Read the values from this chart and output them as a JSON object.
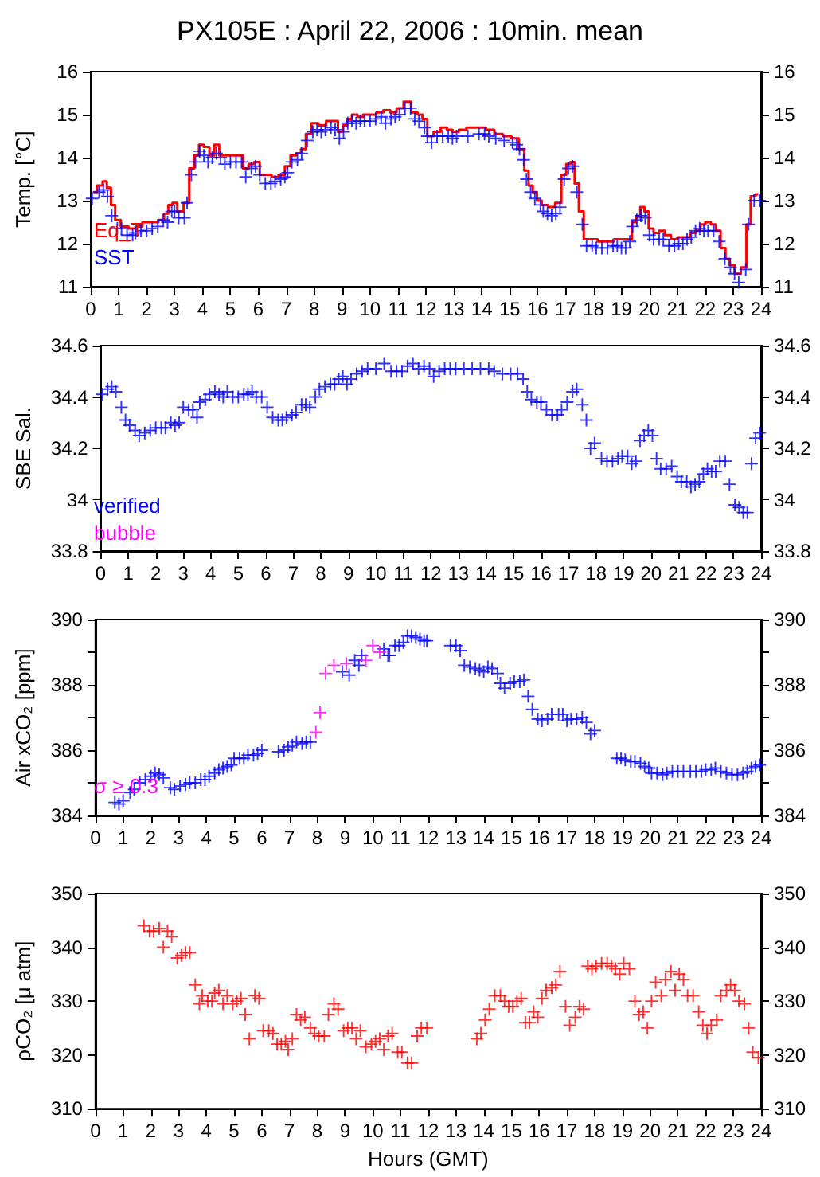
{
  "chart_data": [
    {
      "type": "scatter",
      "title": "PX105E : April 22, 2006 : 10min. mean",
      "ylabel": "Temp. [°C]",
      "xlim": [
        0,
        24
      ],
      "xticks": [
        0,
        1,
        2,
        3,
        4,
        5,
        6,
        7,
        8,
        9,
        10,
        11,
        12,
        13,
        14,
        15,
        16,
        17,
        18,
        19,
        20,
        21,
        22,
        23,
        24
      ],
      "ylim": [
        11,
        16
      ],
      "yticks": [
        11,
        12,
        13,
        14,
        15,
        16
      ],
      "y2lim": [
        11,
        16
      ],
      "y2ticks": [
        11,
        12,
        13,
        14,
        15,
        16
      ],
      "grid": false,
      "legend": "bottom left",
      "marker": "cross",
      "series": [
        {
          "name": "Eq_T",
          "type": "step",
          "marker": "none",
          "color": "#ff0000",
          "x": [
            0.1,
            0.35,
            0.5,
            0.65,
            0.8,
            0.95,
            1.2,
            1.5,
            1.7,
            2.0,
            2.3,
            2.55,
            2.7,
            2.85,
            3.0,
            3.2,
            3.45,
            3.6,
            3.8,
            3.95,
            4.15,
            4.35,
            4.5,
            4.7,
            4.9,
            5.1,
            5.35,
            5.55,
            5.75,
            5.95,
            6.15,
            6.35,
            6.6,
            6.85,
            7.05,
            7.25,
            7.45,
            7.6,
            7.8,
            8.0,
            8.3,
            8.55,
            8.75,
            8.95,
            9.1,
            9.25,
            9.45,
            9.65,
            9.85,
            10.1,
            10.35,
            10.6,
            10.85,
            11.05,
            11.35,
            11.6,
            11.8,
            11.95,
            12.15,
            12.4,
            12.65,
            12.85,
            13.05,
            13.3,
            13.6,
            14.0,
            14.3,
            14.6,
            14.9,
            15.2,
            15.45,
            15.6,
            15.75,
            15.9,
            16.05,
            16.25,
            16.5,
            16.75,
            16.95,
            17.1,
            17.25,
            17.4,
            17.55,
            17.75,
            18.0,
            18.3,
            18.6,
            18.85,
            19.1,
            19.3,
            19.45,
            19.6,
            19.75,
            19.9,
            20.05,
            20.25,
            20.45,
            20.65,
            20.9,
            21.1,
            21.35,
            21.55,
            21.75,
            21.9,
            22.1,
            22.3,
            22.45,
            22.65,
            22.8,
            22.95,
            23.15,
            23.4,
            23.55,
            23.7,
            23.9
          ],
          "values": [
            13.2,
            13.35,
            13.45,
            13.3,
            12.9,
            12.55,
            12.4,
            12.35,
            12.4,
            12.5,
            12.5,
            12.55,
            12.7,
            12.9,
            12.95,
            12.75,
            12.95,
            13.75,
            14.05,
            14.3,
            14.25,
            14.05,
            14.3,
            14.05,
            14.05,
            14.05,
            14.05,
            13.75,
            13.85,
            13.9,
            13.6,
            13.6,
            13.55,
            13.6,
            13.8,
            14.05,
            14.1,
            14.2,
            14.55,
            14.8,
            14.75,
            14.85,
            14.85,
            14.6,
            14.75,
            14.9,
            15.0,
            14.95,
            15.0,
            15.0,
            15.05,
            15.1,
            15.05,
            15.15,
            15.3,
            15.05,
            15.0,
            14.9,
            14.5,
            14.6,
            14.7,
            14.65,
            14.6,
            14.65,
            14.7,
            14.7,
            14.65,
            14.55,
            14.5,
            14.45,
            14.2,
            13.7,
            13.35,
            13.2,
            13.0,
            12.9,
            12.85,
            12.95,
            13.6,
            13.85,
            13.9,
            13.4,
            12.75,
            12.1,
            12.1,
            12.05,
            12.05,
            12.1,
            12.1,
            12.1,
            12.5,
            12.65,
            12.85,
            12.75,
            12.35,
            12.25,
            12.3,
            12.2,
            12.1,
            12.15,
            12.15,
            12.25,
            12.3,
            12.45,
            12.5,
            12.45,
            12.3,
            11.9,
            11.65,
            11.5,
            11.3,
            11.45,
            12.45,
            13.1,
            13.15
          ]
        },
        {
          "name": "SST",
          "color": "#0000ff",
          "x": [
            0.05,
            0.3,
            0.45,
            0.6,
            0.75,
            0.95,
            1.1,
            1.3,
            1.5,
            1.6,
            1.8,
            2.0,
            2.2,
            2.4,
            2.6,
            2.75,
            2.9,
            3.0,
            3.15,
            3.35,
            3.45,
            3.6,
            3.75,
            3.9,
            4.05,
            4.2,
            4.35,
            4.5,
            4.65,
            4.8,
            5.0,
            5.2,
            5.4,
            5.55,
            5.75,
            5.9,
            6.05,
            6.25,
            6.45,
            6.6,
            6.8,
            6.95,
            7.05,
            7.2,
            7.4,
            7.55,
            7.75,
            7.95,
            8.1,
            8.25,
            8.4,
            8.6,
            8.75,
            8.9,
            9.05,
            9.2,
            9.35,
            9.5,
            9.65,
            9.8,
            10.0,
            10.2,
            10.4,
            10.55,
            10.75,
            10.9,
            11.05,
            11.25,
            11.45,
            11.6,
            11.75,
            11.95,
            12.05,
            12.2,
            12.4,
            12.6,
            12.8,
            12.95,
            13.1,
            13.5,
            13.9,
            14.1,
            14.25,
            14.5,
            14.8,
            15.1,
            15.25,
            15.35,
            15.5,
            15.6,
            15.75,
            15.9,
            16.1,
            16.2,
            16.35,
            16.5,
            16.65,
            16.8,
            16.95,
            17.1,
            17.25,
            17.4,
            17.6,
            17.75,
            17.95,
            18.1,
            18.3,
            18.5,
            18.7,
            18.85,
            19.0,
            19.15,
            19.3,
            19.4,
            19.55,
            19.7,
            19.85,
            20.0,
            20.15,
            20.35,
            20.5,
            20.7,
            20.9,
            21.05,
            21.2,
            21.35,
            21.5,
            21.65,
            21.8,
            21.95,
            22.1,
            22.3,
            22.5,
            22.7,
            22.9,
            23.05,
            23.2,
            23.45,
            23.55,
            23.75,
            23.95
          ],
          "values": [
            13.05,
            13.2,
            13.25,
            13.1,
            12.65,
            12.35,
            12.35,
            12.2,
            12.2,
            12.25,
            12.3,
            12.3,
            12.35,
            12.4,
            12.55,
            12.5,
            12.75,
            12.75,
            12.6,
            12.6,
            12.95,
            13.6,
            13.9,
            14.15,
            14.05,
            13.9,
            14.0,
            14.1,
            14.0,
            13.85,
            13.9,
            13.9,
            13.9,
            13.55,
            13.75,
            13.8,
            13.6,
            13.4,
            13.4,
            13.45,
            13.5,
            13.55,
            13.65,
            13.9,
            13.95,
            14.1,
            14.4,
            14.6,
            14.65,
            14.6,
            14.65,
            14.7,
            14.65,
            14.45,
            14.6,
            14.8,
            14.85,
            14.8,
            14.85,
            14.85,
            14.85,
            14.9,
            14.95,
            14.8,
            14.9,
            14.95,
            15.0,
            15.15,
            15.15,
            14.9,
            14.85,
            14.7,
            14.5,
            14.35,
            14.5,
            14.5,
            14.5,
            14.45,
            14.5,
            14.5,
            14.55,
            14.55,
            14.5,
            14.45,
            14.4,
            14.35,
            14.3,
            14.2,
            13.95,
            13.5,
            13.2,
            13.05,
            12.9,
            12.75,
            12.7,
            12.65,
            12.7,
            12.85,
            13.5,
            13.75,
            13.8,
            13.2,
            12.45,
            11.95,
            11.95,
            11.9,
            11.9,
            11.9,
            11.95,
            11.95,
            11.9,
            11.9,
            12.05,
            12.4,
            12.55,
            12.65,
            12.6,
            12.2,
            12.1,
            12.1,
            12.1,
            11.95,
            11.95,
            12.0,
            12.0,
            12.1,
            12.15,
            12.3,
            12.35,
            12.3,
            12.3,
            12.3,
            12.05,
            11.65,
            11.45,
            11.3,
            11.1,
            11.4,
            12.45,
            13.0,
            13.0
          ]
        }
      ]
    },
    {
      "type": "scatter",
      "ylabel": "SBE Sal.",
      "xlim": [
        0,
        24
      ],
      "xticks": [
        0,
        1,
        2,
        3,
        4,
        5,
        6,
        7,
        8,
        9,
        10,
        11,
        12,
        13,
        14,
        15,
        16,
        17,
        18,
        19,
        20,
        21,
        22,
        23,
        24
      ],
      "ylim": [
        33.8,
        34.6
      ],
      "yticks": [
        33.8,
        34,
        34.2,
        34.4,
        34.6
      ],
      "y2lim": [
        33.8,
        34.6
      ],
      "y2ticks": [
        33.8,
        34,
        34.2,
        34.4,
        34.6
      ],
      "grid": false,
      "legend": "bottom left",
      "marker": "cross",
      "series": [
        {
          "name": "verified",
          "color": "#0000ff",
          "x": [
            0.05,
            0.25,
            0.4,
            0.55,
            0.75,
            0.9,
            1.05,
            1.25,
            1.4,
            1.6,
            1.8,
            2.0,
            2.2,
            2.35,
            2.55,
            2.7,
            2.85,
            3.0,
            3.2,
            3.35,
            3.5,
            3.6,
            3.8,
            3.95,
            4.15,
            4.3,
            4.45,
            4.6,
            4.8,
            5.0,
            5.2,
            5.35,
            5.5,
            5.65,
            5.85,
            6.05,
            6.25,
            6.45,
            6.6,
            6.75,
            6.95,
            7.1,
            7.3,
            7.45,
            7.6,
            7.8,
            7.95,
            8.15,
            8.35,
            8.5,
            8.65,
            8.8,
            8.95,
            9.1,
            9.3,
            9.5,
            9.7,
            10.0,
            10.3,
            10.55,
            10.75,
            10.95,
            11.15,
            11.35,
            11.55,
            11.75,
            11.95,
            12.1,
            12.3,
            12.5,
            12.7,
            12.9,
            13.2,
            13.5,
            13.8,
            14.1,
            14.3,
            14.6,
            14.9,
            15.15,
            15.35,
            15.5,
            15.65,
            15.85,
            16.0,
            16.2,
            16.4,
            16.6,
            16.75,
            16.95,
            17.15,
            17.3,
            17.5,
            17.65,
            17.8,
            17.95,
            18.2,
            18.4,
            18.6,
            18.8,
            18.95,
            19.15,
            19.3,
            19.45,
            19.6,
            19.75,
            19.9,
            20.05,
            20.2,
            20.35,
            20.55,
            20.75,
            20.95,
            21.1,
            21.3,
            21.45,
            21.6,
            21.75,
            21.9,
            22.05,
            22.2,
            22.35,
            22.5,
            22.7,
            22.85,
            23.05,
            23.2,
            23.35,
            23.5,
            23.65,
            23.8,
            23.95
          ],
          "values": [
            34.41,
            34.43,
            34.44,
            34.42,
            34.36,
            34.31,
            34.29,
            34.27,
            34.25,
            34.26,
            34.27,
            34.28,
            34.28,
            34.28,
            34.3,
            34.29,
            34.3,
            34.36,
            34.35,
            34.35,
            34.32,
            34.38,
            34.39,
            34.41,
            34.42,
            34.41,
            34.4,
            34.42,
            34.4,
            34.4,
            34.41,
            34.41,
            34.42,
            34.4,
            34.4,
            34.36,
            34.32,
            34.31,
            34.31,
            34.32,
            34.33,
            34.34,
            34.37,
            34.37,
            34.36,
            34.4,
            34.43,
            34.44,
            34.45,
            34.45,
            34.47,
            34.48,
            34.45,
            34.47,
            34.49,
            34.5,
            34.51,
            34.51,
            34.53,
            34.5,
            34.5,
            34.5,
            34.52,
            34.53,
            34.51,
            34.52,
            34.51,
            34.48,
            34.5,
            34.51,
            34.51,
            34.51,
            34.51,
            34.51,
            34.51,
            34.51,
            34.5,
            34.49,
            34.49,
            34.49,
            34.47,
            34.42,
            34.39,
            34.38,
            34.38,
            34.35,
            34.33,
            34.33,
            34.35,
            34.38,
            34.42,
            34.43,
            34.37,
            34.31,
            34.2,
            34.22,
            34.16,
            34.15,
            34.15,
            34.16,
            34.17,
            34.17,
            34.14,
            34.15,
            34.23,
            34.25,
            34.27,
            34.25,
            34.16,
            34.12,
            34.12,
            34.13,
            34.09,
            34.07,
            34.07,
            34.05,
            34.06,
            34.07,
            34.1,
            34.12,
            34.11,
            34.11,
            34.15,
            34.15,
            34.06,
            33.98,
            33.97,
            33.95,
            33.95,
            34.14,
            34.24,
            34.26
          ]
        },
        {
          "name": "bubble",
          "color": "#ff00ff"
        }
      ]
    },
    {
      "type": "scatter",
      "ylabel": "Air xCO₂ [ppm]",
      "xlim": [
        0,
        24
      ],
      "xticks": [
        0,
        1,
        2,
        3,
        4,
        5,
        6,
        7,
        8,
        9,
        10,
        11,
        12,
        13,
        14,
        15,
        16,
        17,
        18,
        19,
        20,
        21,
        22,
        23,
        24
      ],
      "ylim": [
        384,
        390
      ],
      "yticks": [
        384,
        {
          "value": 385,
          "label": null
        },
        386,
        {
          "value": 387,
          "label": null
        },
        388,
        {
          "value": 389,
          "label": null
        },
        390
      ],
      "y2lim": [
        384,
        390
      ],
      "y2ticks": [
        384,
        {
          "value": 385,
          "label": null
        },
        386,
        {
          "value": 387,
          "label": null
        },
        388,
        {
          "value": 389,
          "label": null
        },
        390
      ],
      "grid": false,
      "legend": "bottom left",
      "marker": "cross",
      "series": [
        {
          "color": "#0000ff",
          "x": [
            0.7,
            0.85,
            1.0,
            1.25,
            1.4,
            1.6,
            1.8,
            2.0,
            2.15,
            2.3,
            2.45,
            2.7,
            2.85,
            3.05,
            3.25,
            3.4,
            3.6,
            3.8,
            3.95,
            4.1,
            4.3,
            4.45,
            4.6,
            4.75,
            4.9,
            5.0,
            5.2,
            5.35,
            5.5,
            5.7,
            5.85,
            6.0,
            6.6,
            6.8,
            6.95,
            7.1,
            7.25,
            7.45,
            7.6,
            7.75,
            8.9,
            9.15,
            9.35,
            9.5,
            9.6,
            10.4,
            10.55,
            10.6,
            10.8,
            10.95,
            11.1,
            11.25,
            11.4,
            11.55,
            11.7,
            11.85,
            11.95,
            12.8,
            13.0,
            13.15,
            13.3,
            13.5,
            13.7,
            13.85,
            14.0,
            14.15,
            14.3,
            14.5,
            14.6,
            14.75,
            14.95,
            15.1,
            15.3,
            15.45,
            15.6,
            15.75,
            15.95,
            16.1,
            16.3,
            16.45,
            16.7,
            16.85,
            17.0,
            17.15,
            17.35,
            17.55,
            17.7,
            17.85,
            18.0,
            18.8,
            18.95,
            19.1,
            19.3,
            19.45,
            19.65,
            19.8,
            19.95,
            20.05,
            20.25,
            20.45,
            20.6,
            20.8,
            21.0,
            21.2,
            21.45,
            21.65,
            21.85,
            22.0,
            22.2,
            22.35,
            22.55,
            22.75,
            22.95,
            23.15,
            23.35,
            23.5,
            23.65,
            23.8,
            23.95
          ],
          "values": [
            384.4,
            384.35,
            384.45,
            384.7,
            384.8,
            385.0,
            385.1,
            385.2,
            385.3,
            385.25,
            385.15,
            384.85,
            384.8,
            384.9,
            384.95,
            385.0,
            385.0,
            385.1,
            385.1,
            385.2,
            385.3,
            385.4,
            385.45,
            385.5,
            385.55,
            385.75,
            385.75,
            385.75,
            385.85,
            385.85,
            385.9,
            386.0,
            385.95,
            386.0,
            386.1,
            386.15,
            386.25,
            386.2,
            386.25,
            386.25,
            388.4,
            388.3,
            388.75,
            388.6,
            388.9,
            389.1,
            388.9,
            388.9,
            389.2,
            389.2,
            389.3,
            389.5,
            389.5,
            389.45,
            389.4,
            389.35,
            389.35,
            389.2,
            389.2,
            389.05,
            388.6,
            388.55,
            388.5,
            388.45,
            388.4,
            388.55,
            388.5,
            388.35,
            388.05,
            387.9,
            388.05,
            388.1,
            388.1,
            388.15,
            387.65,
            387.25,
            386.95,
            386.9,
            386.95,
            387.1,
            387.1,
            387.1,
            386.9,
            386.95,
            386.95,
            387.0,
            386.85,
            386.5,
            386.6,
            385.75,
            385.75,
            385.7,
            385.65,
            385.65,
            385.6,
            385.5,
            385.45,
            385.3,
            385.3,
            385.25,
            385.3,
            385.35,
            385.35,
            385.35,
            385.35,
            385.35,
            385.35,
            385.4,
            385.4,
            385.45,
            385.35,
            385.3,
            385.25,
            385.25,
            385.3,
            385.35,
            385.45,
            385.5,
            385.55
          ]
        },
        {
          "name": "σ ≥ 0.3",
          "color": "#ff00ff",
          "x": [
            7.95,
            8.1,
            8.3,
            8.6,
            9.05,
            9.75,
            10.0,
            10.25
          ],
          "values": [
            386.55,
            387.15,
            388.35,
            388.6,
            388.65,
            388.75,
            389.2,
            389.0
          ]
        }
      ]
    },
    {
      "type": "scatter",
      "ylabel": "ρCO₂ [μ atm]",
      "xlabel": "Hours (GMT)",
      "xlim": [
        0,
        24
      ],
      "xticks": [
        0,
        1,
        2,
        3,
        4,
        5,
        6,
        7,
        8,
        9,
        10,
        11,
        12,
        13,
        14,
        15,
        16,
        17,
        18,
        19,
        20,
        21,
        22,
        23,
        24
      ],
      "ylim": [
        310,
        350
      ],
      "yticks": [
        310,
        320,
        330,
        340,
        350
      ],
      "y2lim": [
        310,
        350
      ],
      "y2ticks": [
        310,
        320,
        330,
        340,
        350
      ],
      "grid": false,
      "legend": false,
      "marker": "cross",
      "series": [
        {
          "color": "#ff0000",
          "x": [
            1.75,
            1.95,
            2.1,
            2.3,
            2.45,
            2.6,
            2.75,
            2.95,
            3.1,
            3.25,
            3.4,
            3.6,
            3.75,
            3.85,
            4.05,
            4.2,
            4.3,
            4.45,
            4.6,
            4.75,
            4.95,
            5.1,
            5.25,
            5.4,
            5.55,
            5.75,
            5.9,
            6.05,
            6.25,
            6.4,
            6.55,
            6.7,
            6.85,
            6.95,
            7.1,
            7.25,
            7.4,
            7.55,
            7.75,
            7.9,
            8.05,
            8.25,
            8.4,
            8.6,
            8.75,
            8.95,
            9.1,
            9.25,
            9.4,
            9.55,
            9.75,
            9.95,
            10.1,
            10.25,
            10.4,
            10.55,
            10.7,
            10.9,
            11.05,
            11.25,
            11.4,
            11.6,
            11.75,
            11.95,
            13.75,
            13.9,
            14.05,
            14.2,
            14.4,
            14.6,
            14.75,
            14.9,
            15.05,
            15.2,
            15.35,
            15.5,
            15.65,
            15.8,
            15.95,
            16.1,
            16.25,
            16.45,
            16.6,
            16.75,
            16.95,
            17.1,
            17.3,
            17.45,
            17.6,
            17.75,
            17.9,
            18.05,
            18.25,
            18.45,
            18.6,
            18.75,
            18.9,
            19.05,
            19.25,
            19.45,
            19.6,
            19.75,
            19.9,
            20.05,
            20.2,
            20.4,
            20.55,
            20.75,
            20.9,
            21.05,
            21.2,
            21.35,
            21.55,
            21.75,
            21.9,
            22.05,
            22.2,
            22.4,
            22.55,
            22.75,
            22.9,
            23.05,
            23.2,
            23.4,
            23.55,
            23.7,
            23.9
          ],
          "values": [
            344,
            343,
            343,
            343.5,
            340,
            343,
            342,
            338,
            338.5,
            339,
            339,
            333,
            329.5,
            331,
            330,
            330,
            331.5,
            332,
            329.5,
            331,
            329.5,
            330,
            330.5,
            327.5,
            323,
            331,
            330.5,
            324.5,
            324.5,
            324,
            322,
            322,
            322.5,
            321,
            323,
            327.5,
            326.5,
            327,
            325,
            324,
            323.5,
            323.5,
            327.5,
            329.5,
            328.5,
            324.5,
            325,
            325,
            323,
            324.5,
            321.5,
            322,
            322.5,
            323,
            321,
            323.5,
            324,
            320.5,
            320.5,
            318.5,
            318.5,
            323.5,
            325,
            325,
            323,
            324,
            326.5,
            328.5,
            331,
            331,
            330,
            329,
            329,
            330,
            330.5,
            326,
            326,
            328,
            327,
            330.5,
            332,
            332.5,
            333,
            335.5,
            329,
            325.5,
            327,
            329,
            328.5,
            336.5,
            336,
            336.5,
            337,
            337,
            336.5,
            336,
            335,
            337,
            336,
            330,
            327.5,
            328,
            325,
            330,
            333.5,
            331,
            334,
            335.5,
            332,
            335,
            334,
            331,
            331,
            328,
            325.5,
            324,
            325.5,
            326.5,
            331,
            332,
            333,
            332,
            330,
            329.5,
            325,
            320.5,
            319.5
          ]
        }
      ]
    }
  ]
}
